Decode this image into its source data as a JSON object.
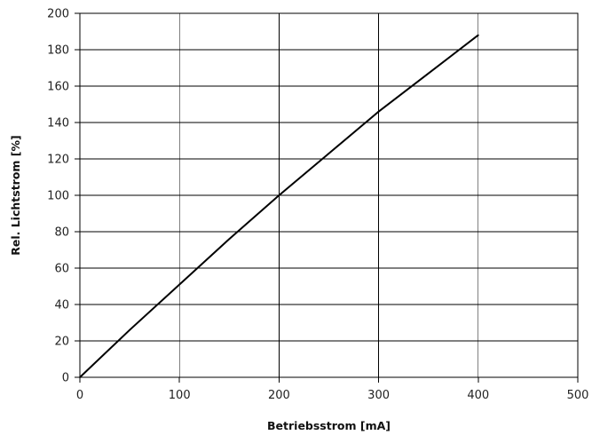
{
  "chart_data": {
    "type": "line",
    "title": "",
    "xlabel": "Betriebsstrom [mA]",
    "ylabel": "Rel. Lichtstrom [%]",
    "xlim": [
      0,
      500
    ],
    "ylim": [
      0,
      200
    ],
    "x_ticks": [
      0,
      100,
      200,
      300,
      400,
      500
    ],
    "y_ticks": [
      0,
      20,
      40,
      60,
      80,
      100,
      120,
      140,
      160,
      180,
      200
    ],
    "grid": true,
    "legend": "none",
    "line_color": "#000000",
    "series": [
      {
        "x": [
          0,
          50,
          100,
          150,
          200,
          250,
          300,
          350,
          400
        ],
        "y": [
          0,
          26,
          51,
          76,
          100,
          123,
          146,
          167,
          188
        ]
      }
    ]
  }
}
